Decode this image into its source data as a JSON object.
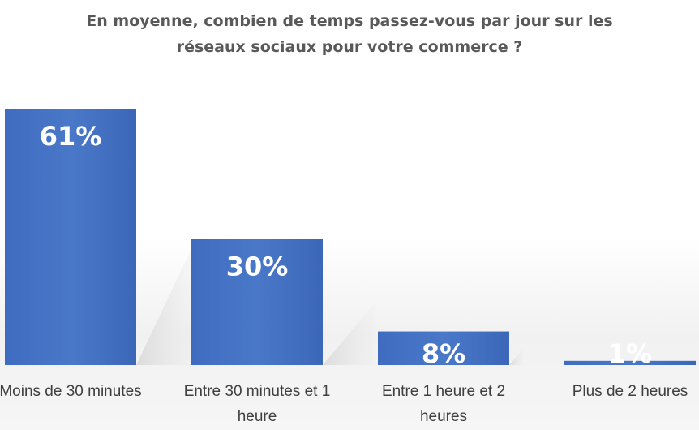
{
  "chart_data": {
    "type": "bar",
    "title_lines": [
      "En moyenne, combien de temps passez-vous par jour sur les",
      "réseaux sociaux pour votre commerce ?"
    ],
    "categories": [
      [
        "Moins de 30 minutes"
      ],
      [
        "Entre 30 minutes et 1",
        "heure"
      ],
      [
        "Entre 1 heure et 2",
        "heures"
      ],
      [
        "Plus de 2 heures"
      ]
    ],
    "values": [
      61,
      30,
      8,
      1
    ],
    "value_labels": [
      "61%",
      "30%",
      "8%",
      "1%"
    ],
    "ylim": [
      0,
      61
    ],
    "grid": false,
    "legend": "none",
    "bar_color": "#4472c4"
  }
}
